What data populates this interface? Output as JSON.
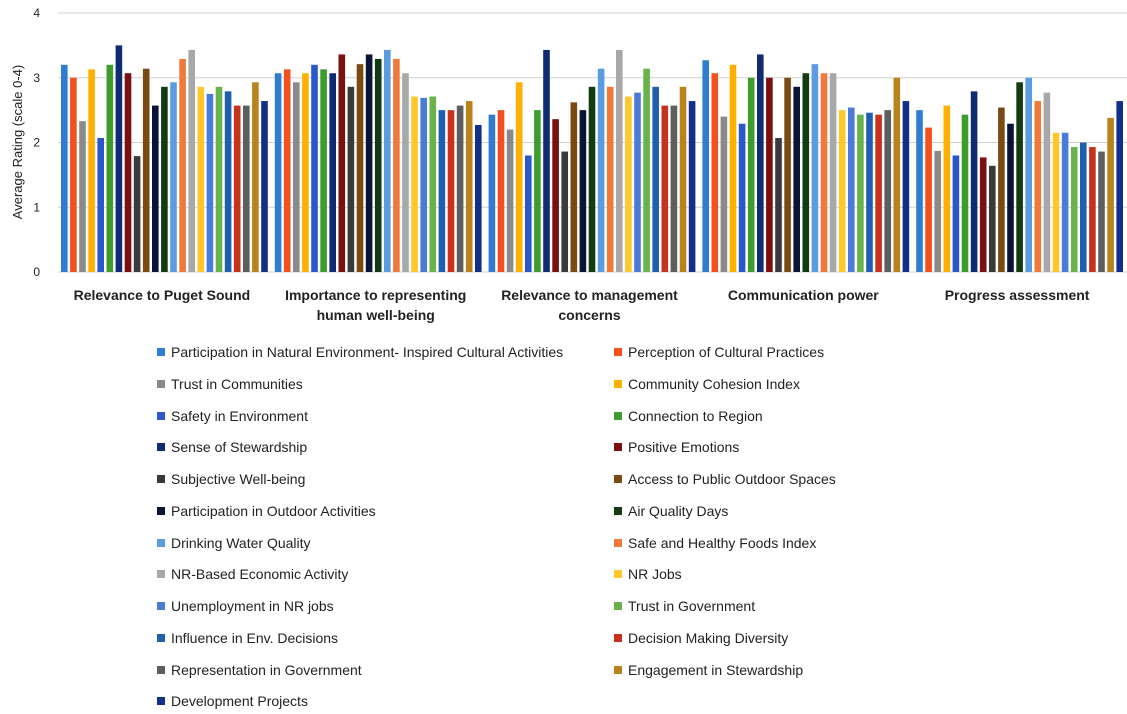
{
  "chart_data": {
    "type": "bar",
    "title": "",
    "xlabel": "",
    "ylabel": "Average Rating (scale 0-4)",
    "ylim": [
      0,
      4
    ],
    "yticks": [
      "0",
      "1",
      "2",
      "3",
      "4"
    ],
    "grid": true,
    "legend_position": "bottom",
    "categories": [
      "Relevance to Puget Sound",
      "Importance to representing human well-being",
      "Relevance to management concerns",
      "Communication power",
      "Progress assessment"
    ],
    "category_lines": [
      [
        "Relevance to Puget Sound"
      ],
      [
        "Importance to representing",
        "human well-being"
      ],
      [
        "Relevance to management",
        "concerns"
      ],
      [
        "Communication power"
      ],
      [
        "Progress assessment"
      ]
    ],
    "series": [
      {
        "name": "Participation in Natural Environment- Inspired Cultural Activities",
        "color": "#2f7dd1",
        "values": [
          3.2,
          3.07,
          2.43,
          3.27,
          2.5
        ]
      },
      {
        "name": "Perception of Cultural Practices",
        "color": "#f2501d",
        "values": [
          3.0,
          3.13,
          2.5,
          3.07,
          2.23
        ]
      },
      {
        "name": "Trust in Communities",
        "color": "#8a8a8a",
        "values": [
          2.33,
          2.93,
          2.2,
          2.4,
          1.87
        ]
      },
      {
        "name": "Community Cohesion Index",
        "color": "#ffb000",
        "values": [
          3.13,
          3.07,
          2.93,
          3.2,
          2.57
        ]
      },
      {
        "name": "Safety in Environment",
        "color": "#2a58c8",
        "values": [
          2.07,
          3.2,
          1.8,
          2.29,
          1.8
        ]
      },
      {
        "name": "Connection to Region",
        "color": "#3d9d2a",
        "values": [
          3.2,
          3.13,
          2.5,
          3.0,
          2.43
        ]
      },
      {
        "name": "Sense of Stewardship",
        "color": "#0f2c73",
        "values": [
          3.5,
          3.07,
          3.43,
          3.36,
          2.79
        ]
      },
      {
        "name": "Positive Emotions",
        "color": "#7b1010",
        "values": [
          3.07,
          3.36,
          2.36,
          3.0,
          1.77
        ]
      },
      {
        "name": "Subjective Well-being",
        "color": "#3a3a3a",
        "values": [
          1.79,
          2.86,
          1.86,
          2.07,
          1.64
        ]
      },
      {
        "name": "Access to Public Outdoor Spaces",
        "color": "#7a4a12",
        "values": [
          3.14,
          3.21,
          2.62,
          3.0,
          2.54
        ]
      },
      {
        "name": "Participation in Outdoor Activities",
        "color": "#0b1435",
        "values": [
          2.57,
          3.36,
          2.5,
          2.86,
          2.29
        ]
      },
      {
        "name": "Air Quality Days",
        "color": "#123b12",
        "values": [
          2.86,
          3.29,
          2.86,
          3.07,
          2.93
        ]
      },
      {
        "name": "Drinking Water Quality",
        "color": "#5b9be0",
        "values": [
          2.93,
          3.43,
          3.14,
          3.21,
          3.0
        ]
      },
      {
        "name": "Safe and Healthy Foods Index",
        "color": "#f07a3a",
        "values": [
          3.29,
          3.29,
          2.86,
          3.07,
          2.64
        ]
      },
      {
        "name": "NR-Based Economic Activity",
        "color": "#a8a8a8",
        "values": [
          3.43,
          3.07,
          3.43,
          3.07,
          2.77
        ]
      },
      {
        "name": "NR Jobs",
        "color": "#ffc72c",
        "values": [
          2.86,
          2.71,
          2.71,
          2.5,
          2.15
        ]
      },
      {
        "name": "Unemployment in NR jobs",
        "color": "#4a7bd6",
        "values": [
          2.75,
          2.69,
          2.77,
          2.54,
          2.15
        ]
      },
      {
        "name": "Trust in Government",
        "color": "#6ab24a",
        "values": [
          2.86,
          2.71,
          3.14,
          2.43,
          1.93
        ]
      },
      {
        "name": "Influence in Env. Decisions",
        "color": "#1f5fb0",
        "values": [
          2.79,
          2.5,
          2.86,
          2.46,
          2.0
        ]
      },
      {
        "name": "Decision Making Diversity",
        "color": "#c8321c",
        "values": [
          2.57,
          2.5,
          2.57,
          2.43,
          1.93
        ]
      },
      {
        "name": "Representation in Government",
        "color": "#5e5e5e",
        "values": [
          2.57,
          2.57,
          2.57,
          2.5,
          1.86
        ]
      },
      {
        "name": "Engagement in Stewardship",
        "color": "#b8821c",
        "values": [
          2.93,
          2.64,
          2.86,
          3.0,
          2.38
        ]
      },
      {
        "name": "Development Projects",
        "color": "#12308a",
        "values": [
          2.64,
          2.27,
          2.64,
          2.64,
          2.64
        ]
      }
    ]
  }
}
